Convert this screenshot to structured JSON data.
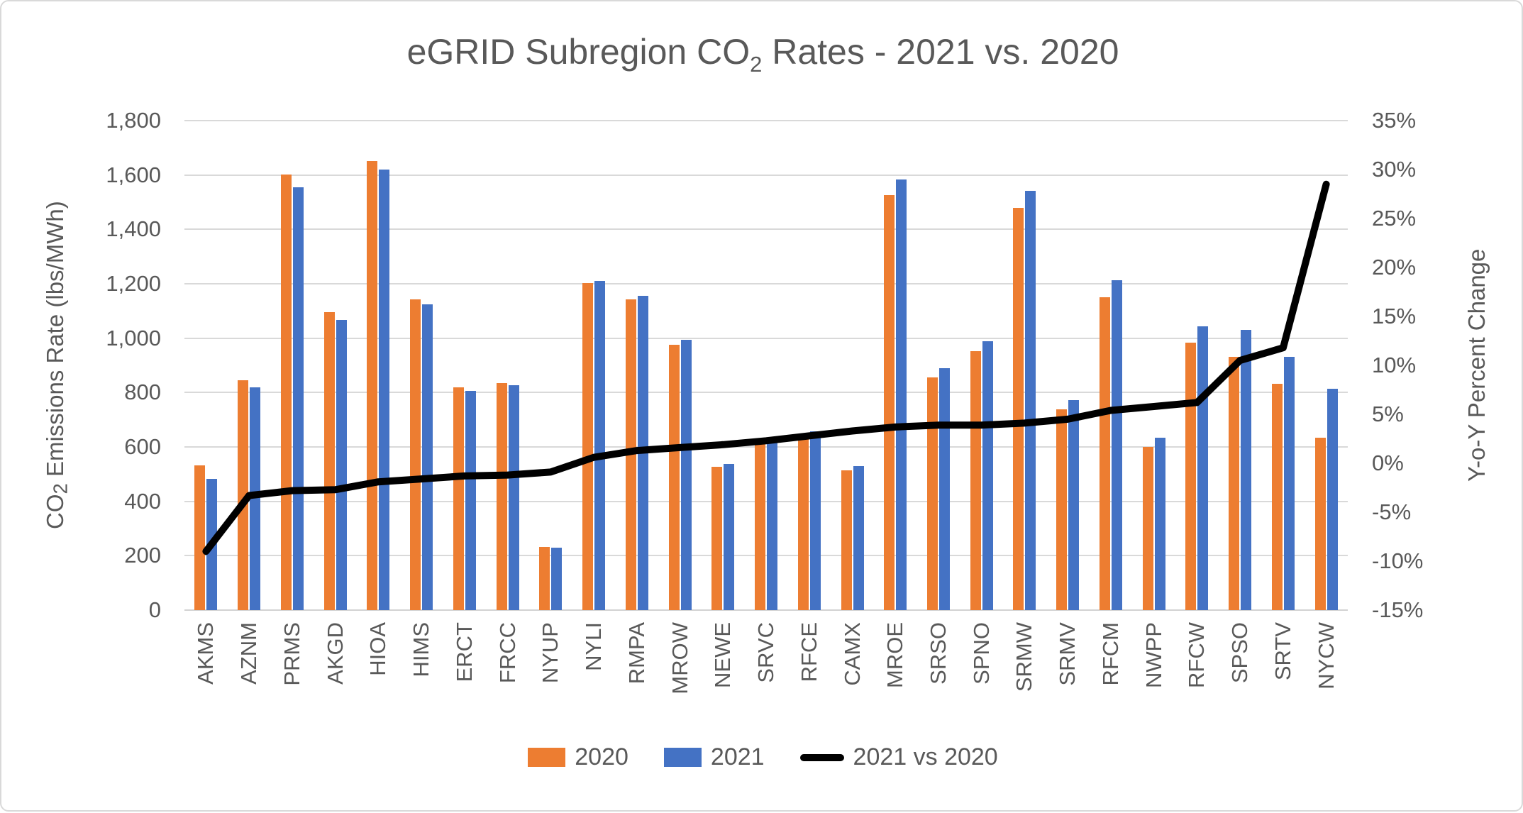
{
  "chart_data": {
    "type": "bar",
    "subtype": "bar-line-combo",
    "title": {
      "prefix": "eGRID Subregion CO",
      "sub": "2",
      "suffix": " Rates - 2021 vs. 2020"
    },
    "categories": [
      "AKMS",
      "AZNM",
      "PRMS",
      "AKGD",
      "HIOA",
      "HIMS",
      "ERCT",
      "FRCC",
      "NYUP",
      "NYLI",
      "RMPA",
      "MROW",
      "NEWE",
      "SRVC",
      "RFCE",
      "CAMX",
      "MROE",
      "SRSO",
      "SPNO",
      "SRMW",
      "SRMV",
      "RFCM",
      "NWPP",
      "RFCW",
      "SPSO",
      "SRTV",
      "NYCW"
    ],
    "series": [
      {
        "name": "2020",
        "kind": "bar",
        "axis": "left",
        "color": "#ED7D31",
        "values": [
          532,
          846,
          1601,
          1096,
          1652,
          1142,
          818,
          836,
          233,
          1203,
          1142,
          977,
          527,
          621,
          639,
          513,
          1527,
          857,
          951,
          1480,
          739,
          1150,
          600,
          983,
          932,
          833,
          634
        ]
      },
      {
        "name": "2021",
        "kind": "bar",
        "axis": "left",
        "color": "#4472C4",
        "values": [
          484,
          818,
          1556,
          1066,
          1621,
          1124,
          807,
          826,
          231,
          1210,
          1157,
          993,
          537,
          635,
          657,
          530,
          1583,
          890,
          988,
          1541,
          772,
          1212,
          635,
          1044,
          1030,
          931,
          815
        ]
      },
      {
        "name": "2021 vs 2020",
        "kind": "line",
        "axis": "right",
        "color": "#000000",
        "values_percent": [
          -9.0,
          -3.3,
          -2.8,
          -2.7,
          -1.9,
          -1.6,
          -1.3,
          -1.2,
          -0.9,
          0.6,
          1.3,
          1.6,
          1.9,
          2.3,
          2.8,
          3.3,
          3.7,
          3.9,
          3.9,
          4.1,
          4.5,
          5.4,
          5.8,
          6.2,
          10.5,
          11.8,
          28.5
        ]
      }
    ],
    "left_axis": {
      "title": {
        "prefix": "CO",
        "sub": "2",
        "suffix": " Emissions Rate (lbs/MWh)"
      },
      "min": 0,
      "max": 1800,
      "step": 200,
      "tick_labels": [
        "1,800",
        "1,600",
        "1,400",
        "1,200",
        "1,000",
        "800",
        "600",
        "400",
        "200",
        "0"
      ]
    },
    "right_axis": {
      "title": "Y-o-Y Percent Change",
      "min_percent": -15,
      "max_percent": 35,
      "step_percent": 5,
      "tick_labels": [
        "35%",
        "30%",
        "25%",
        "20%",
        "15%",
        "10%",
        "5%",
        "0%",
        "-5%",
        "-10%",
        "-15%"
      ]
    },
    "legend": {
      "position": "bottom",
      "entries": [
        {
          "label": "2020",
          "swatch": "bar",
          "color": "#ED7D31"
        },
        {
          "label": "2021",
          "swatch": "bar",
          "color": "#4472C4"
        },
        {
          "label": "2021 vs 2020",
          "swatch": "line",
          "color": "#000000"
        }
      ]
    },
    "grid": "horizontal-only",
    "colors": {
      "text": "#595959",
      "gridline": "#D9D9D9",
      "axis_line": "#D2D2D2",
      "background": "#FFFFFF"
    }
  }
}
